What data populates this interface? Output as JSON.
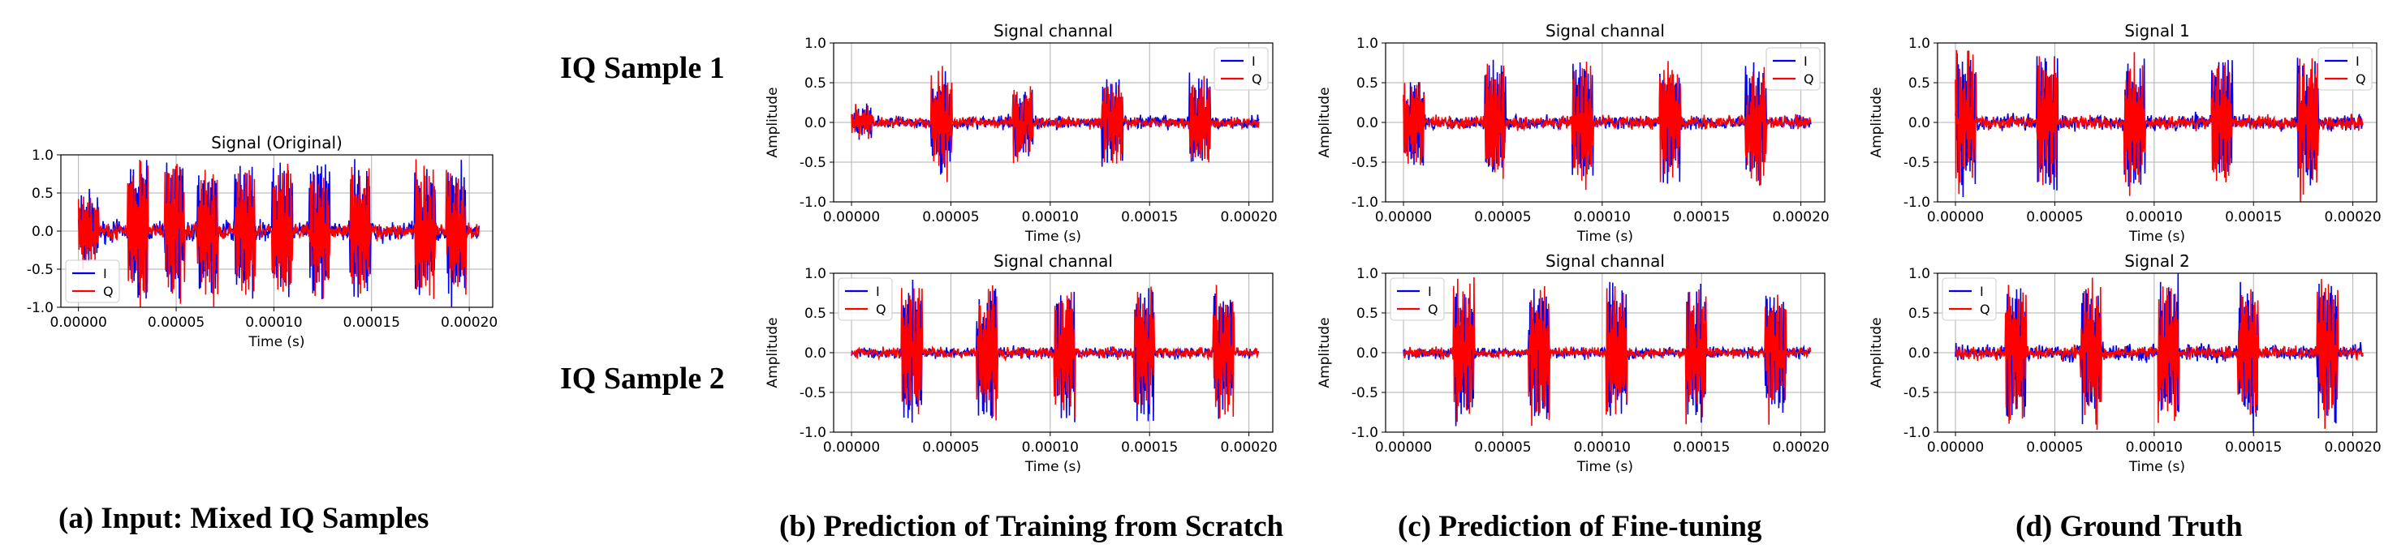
{
  "row_labels": {
    "row1": "IQ Sample 1",
    "row2": "IQ Sample 2"
  },
  "captions": {
    "a": "(a) Input: Mixed IQ Samples",
    "b": "(b) Prediction of Training from Scratch",
    "c": "(c) Prediction of Fine-tuning",
    "d": "(d) Ground Truth"
  },
  "colors": {
    "I": "#0000ee",
    "Q": "#ff0000"
  },
  "chart_data": [
    {
      "id": "a",
      "type": "line",
      "title": "Signal (Original)",
      "xlabel": "Time (s)",
      "ylabel": "",
      "xlim": [
        -9e-06,
        0.000212
      ],
      "ylim": [
        -1.0,
        1.0
      ],
      "xticks": [
        "0.00000",
        "0.00005",
        "0.00010",
        "0.00015",
        "0.00020"
      ],
      "xtick_values": [
        0,
        5e-05,
        0.0001,
        0.00015,
        0.0002
      ],
      "yticks": [
        "1.0",
        "0.5",
        "0.0",
        "-0.5",
        "-1.0"
      ],
      "ytick_values": [
        1.0,
        0.5,
        0.0,
        -0.5,
        -1.0
      ],
      "legend": [
        "I",
        "Q"
      ],
      "legend_loc": "lower-left",
      "series": [
        {
          "name": "I",
          "noise": 0.08
        },
        {
          "name": "Q",
          "noise": 0.06
        }
      ],
      "bursts_start_s": [
        0.0,
        2.5e-05,
        4.4e-05,
        6.1e-05,
        8e-05,
        9.9e-05,
        0.000118,
        0.000139,
        0.000172,
        0.000188
      ],
      "burst_amp": [
        0.45,
        0.98,
        0.95,
        0.92,
        0.95,
        0.95,
        0.9,
        0.95,
        0.98,
        0.95
      ]
    },
    {
      "id": "b1",
      "type": "line",
      "title": "Signal channal",
      "xlabel": "Time (s)",
      "ylabel": "Amplitude",
      "xlim": [
        -9e-06,
        0.000212
      ],
      "ylim": [
        -1.0,
        1.0
      ],
      "xticks": [
        "0.00000",
        "0.00005",
        "0.00010",
        "0.00015",
        "0.00020"
      ],
      "xtick_values": [
        0,
        5e-05,
        0.0001,
        0.00015,
        0.0002
      ],
      "yticks": [
        "1.0",
        "0.5",
        "0.0",
        "-0.5",
        "-1.0"
      ],
      "ytick_values": [
        1.0,
        0.5,
        0.0,
        -0.5,
        -1.0
      ],
      "legend": [
        "I",
        "Q"
      ],
      "legend_loc": "upper-right",
      "series": [
        {
          "name": "I",
          "noise": 0.05
        },
        {
          "name": "Q",
          "noise": 0.04
        }
      ],
      "bursts_start_s": [
        0.0,
        4e-05,
        8.1e-05,
        0.000126,
        0.00017
      ],
      "burst_amp": [
        0.2,
        0.7,
        0.5,
        0.6,
        0.6
      ]
    },
    {
      "id": "c1",
      "type": "line",
      "title": "Signal channal",
      "xlabel": "Time (s)",
      "ylabel": "Amplitude",
      "xlim": [
        -9e-06,
        0.000212
      ],
      "ylim": [
        -1.0,
        1.0
      ],
      "xticks": [
        "0.00000",
        "0.00005",
        "0.00010",
        "0.00015",
        "0.00020"
      ],
      "xtick_values": [
        0,
        5e-05,
        0.0001,
        0.00015,
        0.0002
      ],
      "yticks": [
        "1.0",
        "0.5",
        "0.0",
        "-0.5",
        "-1.0"
      ],
      "ytick_values": [
        1.0,
        0.5,
        0.0,
        -0.5,
        -1.0
      ],
      "legend": [
        "I",
        "Q"
      ],
      "legend_loc": "upper-right",
      "series": [
        {
          "name": "I",
          "noise": 0.05
        },
        {
          "name": "Q",
          "noise": 0.05
        }
      ],
      "bursts_start_s": [
        0.0,
        4.1e-05,
        8.5e-05,
        0.000129,
        0.000172
      ],
      "burst_amp": [
        0.6,
        0.8,
        0.85,
        0.8,
        0.8
      ]
    },
    {
      "id": "d1",
      "type": "line",
      "title": "Signal 1",
      "xlabel": "Time (s)",
      "ylabel": "Amplitude",
      "xlim": [
        -9e-06,
        0.000212
      ],
      "ylim": [
        -1.0,
        1.0
      ],
      "xticks": [
        "0.00000",
        "0.00005",
        "0.00010",
        "0.00015",
        "0.00020"
      ],
      "xtick_values": [
        0,
        5e-05,
        0.0001,
        0.00015,
        0.0002
      ],
      "yticks": [
        "1.0",
        "0.5",
        "0.0",
        "-0.5",
        "-1.0"
      ],
      "ytick_values": [
        1.0,
        0.5,
        0.0,
        -0.5,
        -1.0
      ],
      "legend": [
        "I",
        "Q"
      ],
      "legend_loc": "upper-right",
      "series": [
        {
          "name": "I",
          "noise": 0.06
        },
        {
          "name": "Q",
          "noise": 0.05
        }
      ],
      "bursts_start_s": [
        0.0,
        4.1e-05,
        8.5e-05,
        0.000129,
        0.000172
      ],
      "burst_amp": [
        0.95,
        0.95,
        0.95,
        0.95,
        0.95
      ]
    },
    {
      "id": "b2",
      "type": "line",
      "title": "Signal channal",
      "xlabel": "Time (s)",
      "ylabel": "Amplitude",
      "xlim": [
        -9e-06,
        0.000212
      ],
      "ylim": [
        -1.0,
        1.0
      ],
      "xticks": [
        "0.00000",
        "0.00005",
        "0.00010",
        "0.00015",
        "0.00020"
      ],
      "xtick_values": [
        0,
        5e-05,
        0.0001,
        0.00015,
        0.0002
      ],
      "yticks": [
        "1.0",
        "0.5",
        "0.0",
        "-0.5",
        "-1.0"
      ],
      "ytick_values": [
        1.0,
        0.5,
        0.0,
        -0.5,
        -1.0
      ],
      "legend": [
        "I",
        "Q"
      ],
      "legend_loc": "upper-left",
      "series": [
        {
          "name": "I",
          "noise": 0.04
        },
        {
          "name": "Q",
          "noise": 0.04
        }
      ],
      "bursts_start_s": [
        2.5e-05,
        6.3e-05,
        0.000102,
        0.000142,
        0.000182
      ],
      "burst_amp": [
        0.95,
        0.9,
        0.95,
        0.9,
        0.95
      ]
    },
    {
      "id": "c2",
      "type": "line",
      "title": "Signal channal",
      "xlabel": "Time (s)",
      "ylabel": "Amplitude",
      "xlim": [
        -9e-06,
        0.000212
      ],
      "ylim": [
        -1.0,
        1.0
      ],
      "xticks": [
        "0.00000",
        "0.00005",
        "0.00010",
        "0.00015",
        "0.00020"
      ],
      "xtick_values": [
        0,
        5e-05,
        0.0001,
        0.00015,
        0.0002
      ],
      "yticks": [
        "1.0",
        "0.5",
        "0.0",
        "-0.5",
        "-1.0"
      ],
      "ytick_values": [
        1.0,
        0.5,
        0.0,
        -0.5,
        -1.0
      ],
      "legend": [
        "I",
        "Q"
      ],
      "legend_loc": "upper-left",
      "series": [
        {
          "name": "I",
          "noise": 0.04
        },
        {
          "name": "Q",
          "noise": 0.04
        }
      ],
      "bursts_start_s": [
        2.5e-05,
        6.3e-05,
        0.000102,
        0.000142,
        0.000182
      ],
      "burst_amp": [
        0.95,
        0.9,
        0.95,
        0.9,
        0.95
      ]
    },
    {
      "id": "d2",
      "type": "line",
      "title": "Signal 2",
      "xlabel": "Time (s)",
      "ylabel": "Amplitude",
      "xlim": [
        -9e-06,
        0.000212
      ],
      "ylim": [
        -1.0,
        1.0
      ],
      "xticks": [
        "0.00000",
        "0.00005",
        "0.00010",
        "0.00015",
        "0.00020"
      ],
      "xtick_values": [
        0,
        5e-05,
        0.0001,
        0.00015,
        0.0002
      ],
      "yticks": [
        "1.0",
        "0.5",
        "0.0",
        "-0.5",
        "-1.0"
      ],
      "ytick_values": [
        1.0,
        0.5,
        0.0,
        -0.5,
        -1.0
      ],
      "legend": [
        "I",
        "Q"
      ],
      "legend_loc": "upper-left",
      "series": [
        {
          "name": "I",
          "noise": 0.06
        },
        {
          "name": "Q",
          "noise": 0.05
        }
      ],
      "bursts_start_s": [
        2.5e-05,
        6.3e-05,
        0.000102,
        0.000142,
        0.000182
      ],
      "burst_amp": [
        0.95,
        0.95,
        0.95,
        0.95,
        0.95
      ]
    }
  ]
}
